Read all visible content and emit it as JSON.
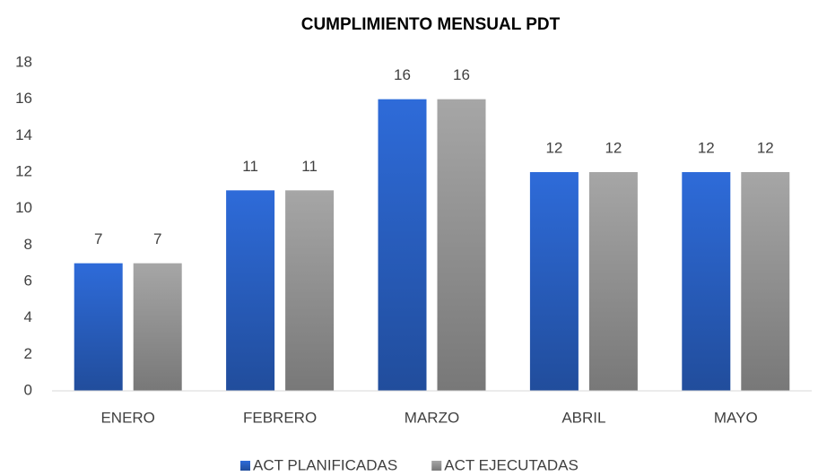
{
  "chart_data": {
    "type": "bar",
    "title": "CUMPLIMIENTO MENSUAL PDT",
    "categories": [
      "ENERO",
      "FEBRERO",
      "MARZO",
      "ABRIL",
      "MAYO"
    ],
    "series": [
      {
        "name": "ACT PLANIFICADAS",
        "color": "#2e6bd9",
        "values": [
          7,
          11,
          16,
          12,
          12
        ]
      },
      {
        "name": "ACT EJECUTADAS",
        "color": "#a6a6a6",
        "values": [
          7,
          11,
          16,
          12,
          12
        ]
      }
    ],
    "ylim": [
      0,
      18
    ],
    "yticks": [
      0,
      2,
      4,
      6,
      8,
      10,
      12,
      14,
      16,
      18
    ],
    "grid": false,
    "legend": "bottom",
    "data_labels": true
  }
}
